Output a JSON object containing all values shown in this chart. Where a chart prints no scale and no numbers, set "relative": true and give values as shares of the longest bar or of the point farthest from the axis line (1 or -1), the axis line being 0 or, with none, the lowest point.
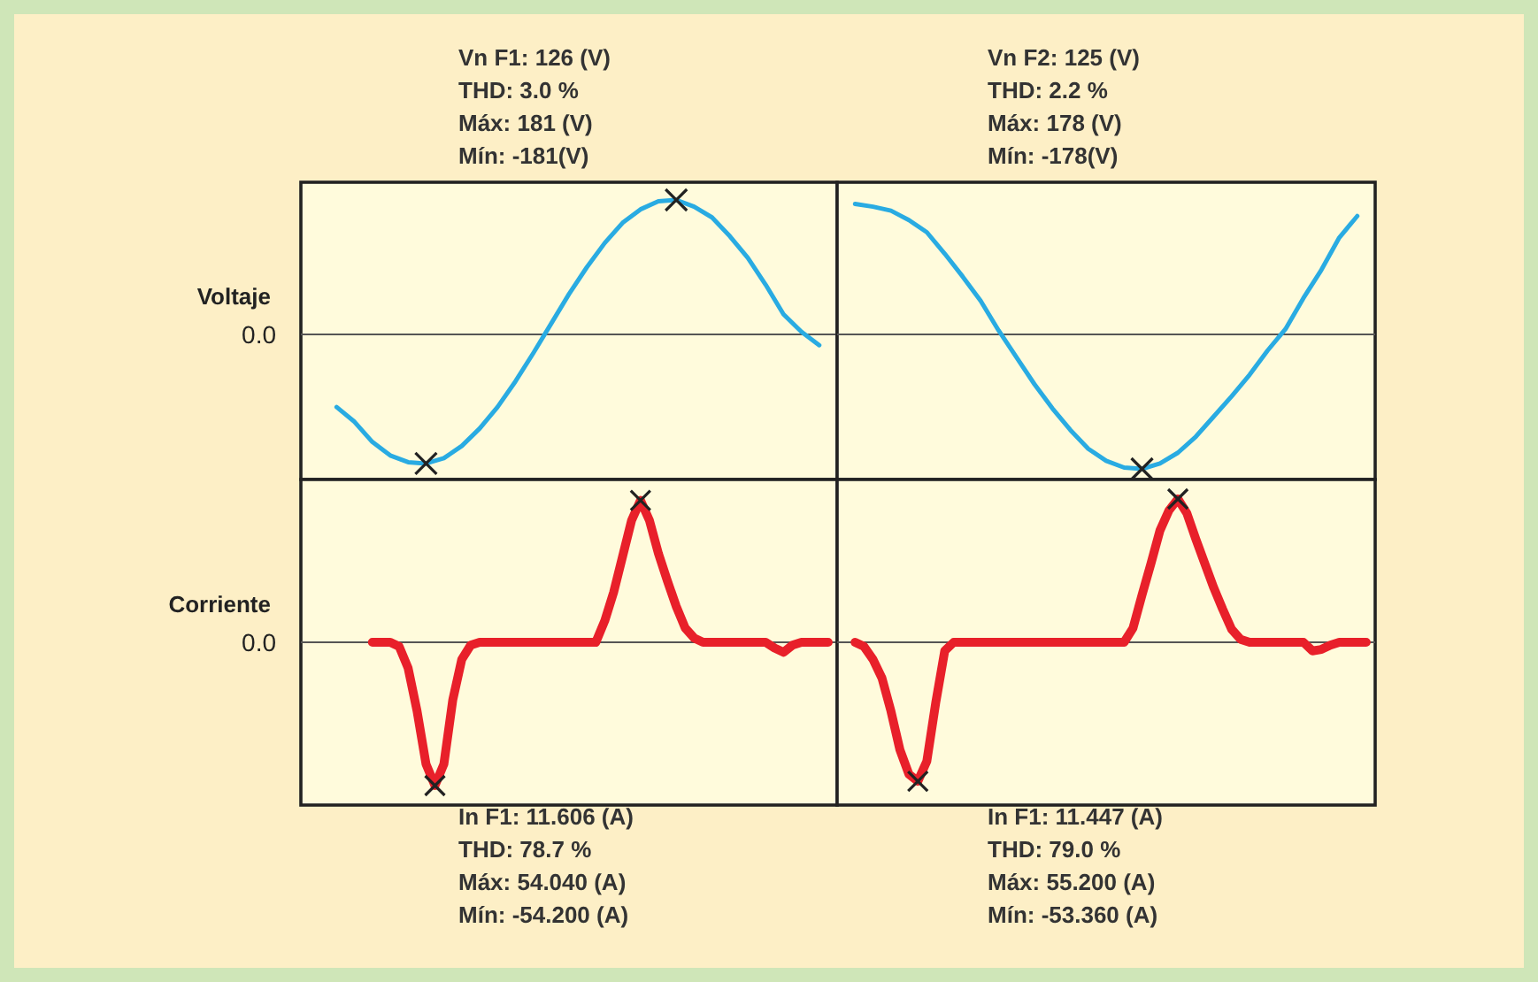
{
  "chart_data": [
    {
      "type": "line",
      "relative": true,
      "ylabel": "Voltaje",
      "categories": [
        null,
        null,
        null,
        null,
        null,
        null,
        null,
        null,
        null,
        null,
        null,
        null,
        null,
        null,
        null,
        null,
        null,
        null,
        null,
        null,
        null,
        null,
        null,
        null,
        null,
        null,
        null,
        null,
        null,
        null,
        null
      ],
      "series": [
        {
          "color": "#29abe2",
          "values": [
            null,
            null,
            -0.54,
            -0.65,
            -0.8,
            -0.9,
            -0.95,
            -0.96,
            -0.92,
            -0.83,
            -0.7,
            -0.54,
            -0.35,
            -0.14,
            0.08,
            0.3,
            0.5,
            0.68,
            0.83,
            0.93,
            0.99,
            1,
            0.95,
            0.87,
            0.73,
            0.57,
            0.37,
            0.15,
            0.02,
            -0.08,
            null
          ]
        }
      ],
      "annotations": [
        "Vn F1: 126 (V)",
        "THD: 3.0 %",
        "Máx: 181 (V)",
        "Mín: -181(V)",
        "0.0"
      ]
    },
    {
      "type": "line",
      "relative": true,
      "categories": [
        null,
        null,
        null,
        null,
        null,
        null,
        null,
        null,
        null,
        null,
        null,
        null,
        null,
        null,
        null,
        null,
        null,
        null,
        null,
        null,
        null,
        null,
        null,
        null,
        null,
        null,
        null,
        null,
        null,
        null,
        null
      ],
      "series": [
        {
          "color": "#29abe2",
          "values": [
            null,
            0.97,
            0.95,
            0.92,
            0.85,
            0.76,
            0.6,
            0.43,
            0.25,
            0.03,
            -0.17,
            -0.37,
            -0.55,
            -0.71,
            -0.85,
            -0.94,
            -0.99,
            -1,
            -0.96,
            -0.88,
            -0.76,
            -0.61,
            -0.46,
            -0.3,
            -0.12,
            0.04,
            0.27,
            0.48,
            0.72,
            0.88,
            null
          ]
        }
      ],
      "annotations": [
        "Vn F2: 125 (V)",
        "THD: 2.2 %",
        "Máx: 178 (V)",
        "Mín: -178(V)"
      ]
    },
    {
      "type": "line",
      "relative": true,
      "ylabel": "Corriente",
      "categories": [
        null,
        null,
        null,
        null,
        null,
        null,
        null,
        null,
        null,
        null,
        null,
        null,
        null,
        null,
        null,
        null,
        null,
        null,
        null,
        null,
        null,
        null,
        null,
        null,
        null,
        null,
        null,
        null,
        null,
        null,
        null,
        null,
        null,
        null,
        null,
        null,
        null,
        null,
        null,
        null,
        null,
        null,
        null,
        null,
        null,
        null,
        null,
        null,
        null,
        null,
        null,
        null,
        null,
        null,
        null,
        null,
        null,
        null,
        null,
        null,
        null
      ],
      "series": [
        {
          "color": "#e8202a",
          "values": [
            null,
            null,
            null,
            null,
            null,
            null,
            null,
            null,
            0,
            0,
            0,
            -0.03,
            -0.18,
            -0.48,
            -0.85,
            -1,
            -0.85,
            -0.4,
            -0.12,
            -0.02,
            0,
            0,
            0,
            0,
            0,
            0,
            0,
            0,
            0,
            0,
            0,
            0,
            0,
            0,
            0.15,
            0.35,
            0.6,
            0.85,
            0.99,
            0.85,
            0.62,
            0.43,
            0.25,
            0.1,
            0.03,
            0,
            0,
            0,
            0,
            0,
            0,
            0,
            0,
            -0.04,
            -0.07,
            -0.02,
            0,
            0,
            0,
            0,
            null
          ]
        }
      ],
      "annotations": [
        "In F1: 11.606 (A)",
        "THD: 78.7 %",
        "Máx: 54.040 (A)",
        "Mín: -54.200 (A)",
        "0.0"
      ]
    },
    {
      "type": "line",
      "relative": true,
      "categories": [
        null,
        null,
        null,
        null,
        null,
        null,
        null,
        null,
        null,
        null,
        null,
        null,
        null,
        null,
        null,
        null,
        null,
        null,
        null,
        null,
        null,
        null,
        null,
        null,
        null,
        null,
        null,
        null,
        null,
        null,
        null,
        null,
        null,
        null,
        null,
        null,
        null,
        null,
        null,
        null,
        null,
        null,
        null,
        null,
        null,
        null,
        null,
        null,
        null,
        null,
        null,
        null,
        null,
        null,
        null,
        null,
        null,
        null,
        null,
        null,
        null
      ],
      "series": [
        {
          "color": "#e8202a",
          "values": [
            null,
            null,
            0,
            -0.03,
            -0.12,
            -0.25,
            -0.48,
            -0.75,
            -0.92,
            -0.97,
            -0.83,
            -0.42,
            -0.06,
            0,
            0,
            0,
            0,
            0,
            0,
            0,
            0,
            0,
            0,
            0,
            0,
            0,
            0,
            0,
            0,
            0,
            0,
            0,
            0,
            0.1,
            0.33,
            0.55,
            0.78,
            0.92,
            1,
            0.9,
            0.72,
            0.55,
            0.38,
            0.23,
            0.09,
            0.02,
            0,
            0,
            0,
            0,
            0,
            0,
            0,
            -0.06,
            -0.05,
            -0.02,
            0,
            0,
            0,
            0,
            null
          ]
        }
      ],
      "annotations": [
        "In F1: 11.447 (A)",
        "THD: 79.0 %",
        "Máx: 55.200 (A)",
        "Mín: -53.360 (A)"
      ]
    }
  ]
}
